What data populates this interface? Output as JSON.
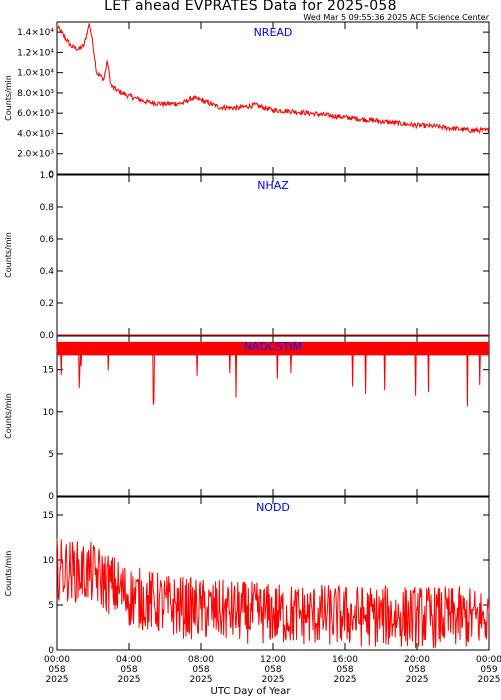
{
  "title": "LET ahead EVPRATES Data for 2025-058",
  "subtitle": "Wed Mar  5 09:55:36 2025 ACE Science Center",
  "xlabel": "UTC Day of Year",
  "colors": {
    "data": "#ff0000",
    "panel_label": "#0000ff",
    "axes": "#000000"
  },
  "chart_data": [
    {
      "type": "line",
      "label": "NREAD",
      "ylabel": "Counts/min",
      "ylim": [
        0,
        15000
      ],
      "yticks": [
        0,
        2000,
        4000,
        6000,
        8000,
        10000,
        12000,
        14000
      ],
      "ytick_labels": [
        "0",
        "2.0×10³",
        "4.0×10³",
        "6.0×10³",
        "8.0×10³",
        "1.0×10⁴",
        "1.2×10⁴",
        "1.4×10⁴"
      ],
      "x_hours": [
        0,
        0.3,
        0.8,
        1.2,
        1.5,
        1.8,
        2.0,
        2.2,
        2.4,
        2.6,
        2.8,
        3.0,
        3.3,
        3.6,
        4.0,
        5.0,
        6.0,
        7.0,
        7.5,
        8.0,
        9.0,
        10.0,
        11.0,
        12.0,
        13.0,
        14.0,
        15.0,
        16.0,
        17.0,
        18.0,
        19.0,
        20.0,
        21.0,
        22.0,
        23.0,
        24.0
      ],
      "values": [
        14600,
        13800,
        12600,
        12300,
        12700,
        14900,
        12800,
        10000,
        9700,
        9300,
        11200,
        8700,
        8300,
        8000,
        7700,
        7100,
        6900,
        7000,
        7500,
        7300,
        6600,
        6500,
        6800,
        6300,
        6200,
        6000,
        5800,
        5600,
        5400,
        5200,
        5000,
        4800,
        4700,
        4500,
        4300,
        4300
      ],
      "noise": 250
    },
    {
      "type": "line",
      "label": "NHAZ",
      "ylabel": "Counts/min",
      "ylim": [
        0,
        1.0
      ],
      "yticks": [
        0,
        0.2,
        0.4,
        0.6,
        0.8,
        1.0
      ],
      "ytick_labels": [
        "0.0",
        "0.2",
        "0.4",
        "0.6",
        "0.8",
        "1.0"
      ],
      "x_hours": [
        0,
        24
      ],
      "values": [
        0,
        0
      ],
      "noise": 0
    },
    {
      "type": "line",
      "label": "NADCSTIM",
      "ylabel": "Counts/min",
      "ylim": [
        0,
        19
      ],
      "yticks": [
        0,
        5,
        10,
        15
      ],
      "ytick_labels": [
        "0",
        "5",
        "10",
        "15"
      ],
      "x_hours": [
        0,
        24
      ],
      "values": [
        17.5,
        17.5
      ],
      "noise": 0.6
    },
    {
      "type": "line",
      "label": "NODD",
      "ylabel": "Counts/min",
      "ylim": [
        0,
        17
      ],
      "yticks": [
        0,
        5,
        10,
        15
      ],
      "ytick_labels": [
        "0",
        "5",
        "10",
        "15"
      ],
      "x_hours": [
        0,
        2,
        4,
        6,
        8,
        12,
        16,
        20,
        24
      ],
      "values": [
        9,
        8.5,
        6,
        5,
        4.5,
        4,
        3.8,
        3.7,
        3.5
      ],
      "noise": 3.5
    }
  ],
  "x_axis": {
    "range_hours": [
      0,
      24
    ],
    "ticks": [
      {
        "hour": 0,
        "time": "00:00",
        "doy": "058",
        "year": "2025"
      },
      {
        "hour": 4,
        "time": "04:00",
        "doy": "058",
        "year": "2025"
      },
      {
        "hour": 8,
        "time": "08:00",
        "doy": "058",
        "year": "2025"
      },
      {
        "hour": 12,
        "time": "12:00",
        "doy": "058",
        "year": "2025"
      },
      {
        "hour": 16,
        "time": "16:00",
        "doy": "058",
        "year": "2025"
      },
      {
        "hour": 20,
        "time": "20:00",
        "doy": "058",
        "year": "2025"
      },
      {
        "hour": 24,
        "time": "00:00",
        "doy": "059",
        "year": "2025"
      }
    ]
  }
}
